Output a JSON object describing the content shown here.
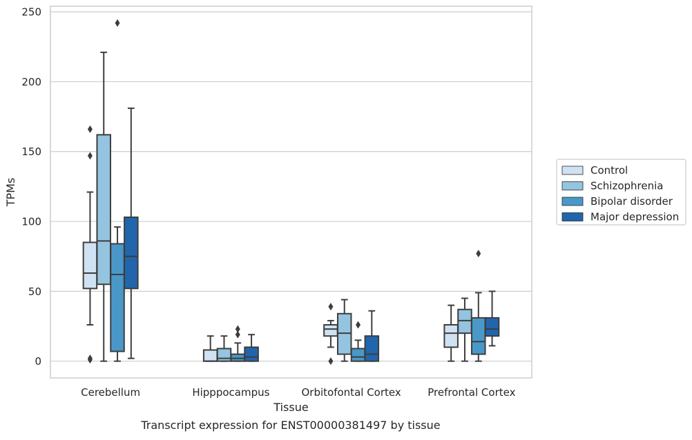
{
  "chart_data": {
    "type": "box",
    "caption": "Transcript expression for ENST00000381497 by tissue",
    "xlabel": "Tissue",
    "ylabel": "TPMs",
    "ylim": [
      -12,
      254
    ],
    "yticks": [
      0,
      50,
      100,
      150,
      200,
      250
    ],
    "grid": true,
    "legend_position": "right",
    "categories": [
      "Cerebellum",
      "Hipppocampus",
      "Orbitofontal Cortex",
      "Prefrontal Cortex"
    ],
    "series": [
      {
        "name": "Control",
        "color": "#d0e1f2",
        "boxes": [
          {
            "whislo": 26,
            "q1": 52,
            "med": 63,
            "q3": 85,
            "whishi": 121,
            "fliers": [
              166,
              147,
              2,
              1
            ]
          },
          {
            "whislo": 0,
            "q1": 0,
            "med": 0,
            "q3": 8,
            "whishi": 18,
            "fliers": []
          },
          {
            "whislo": 10,
            "q1": 18,
            "med": 23,
            "q3": 26,
            "whishi": 29,
            "fliers": [
              39,
              0
            ]
          },
          {
            "whislo": 0,
            "q1": 10,
            "med": 20,
            "q3": 26,
            "whishi": 40,
            "fliers": []
          }
        ]
      },
      {
        "name": "Schizophrenia",
        "color": "#94c4df",
        "boxes": [
          {
            "whislo": 0,
            "q1": 55,
            "med": 86,
            "q3": 162,
            "whishi": 221,
            "fliers": []
          },
          {
            "whislo": 0,
            "q1": 0,
            "med": 2,
            "q3": 9,
            "whishi": 18,
            "fliers": []
          },
          {
            "whislo": 0,
            "q1": 5,
            "med": 20,
            "q3": 34,
            "whishi": 44,
            "fliers": []
          },
          {
            "whislo": 0,
            "q1": 20,
            "med": 29,
            "q3": 37,
            "whishi": 45,
            "fliers": []
          }
        ]
      },
      {
        "name": "Bipolar disorder",
        "color": "#4a98c9",
        "boxes": [
          {
            "whislo": 0,
            "q1": 7,
            "med": 62,
            "q3": 84,
            "whishi": 96,
            "fliers": [
              242
            ]
          },
          {
            "whislo": 0,
            "q1": 0,
            "med": 2,
            "q3": 5,
            "whishi": 13,
            "fliers": [
              23,
              19
            ]
          },
          {
            "whislo": 0,
            "q1": 0,
            "med": 3,
            "q3": 9,
            "whishi": 15,
            "fliers": [
              26
            ]
          },
          {
            "whislo": 0,
            "q1": 5,
            "med": 14,
            "q3": 31,
            "whishi": 49,
            "fliers": [
              77
            ]
          }
        ]
      },
      {
        "name": "Major depression",
        "color": "#2166ac",
        "boxes": [
          {
            "whislo": 2,
            "q1": 52,
            "med": 75,
            "q3": 103,
            "whishi": 181,
            "fliers": []
          },
          {
            "whislo": 0,
            "q1": 0,
            "med": 3,
            "q3": 10,
            "whishi": 19,
            "fliers": []
          },
          {
            "whislo": 0,
            "q1": 0,
            "med": 5,
            "q3": 18,
            "whishi": 36,
            "fliers": []
          },
          {
            "whislo": 11,
            "q1": 18,
            "med": 23,
            "q3": 31,
            "whishi": 50,
            "fliers": []
          }
        ]
      }
    ]
  }
}
